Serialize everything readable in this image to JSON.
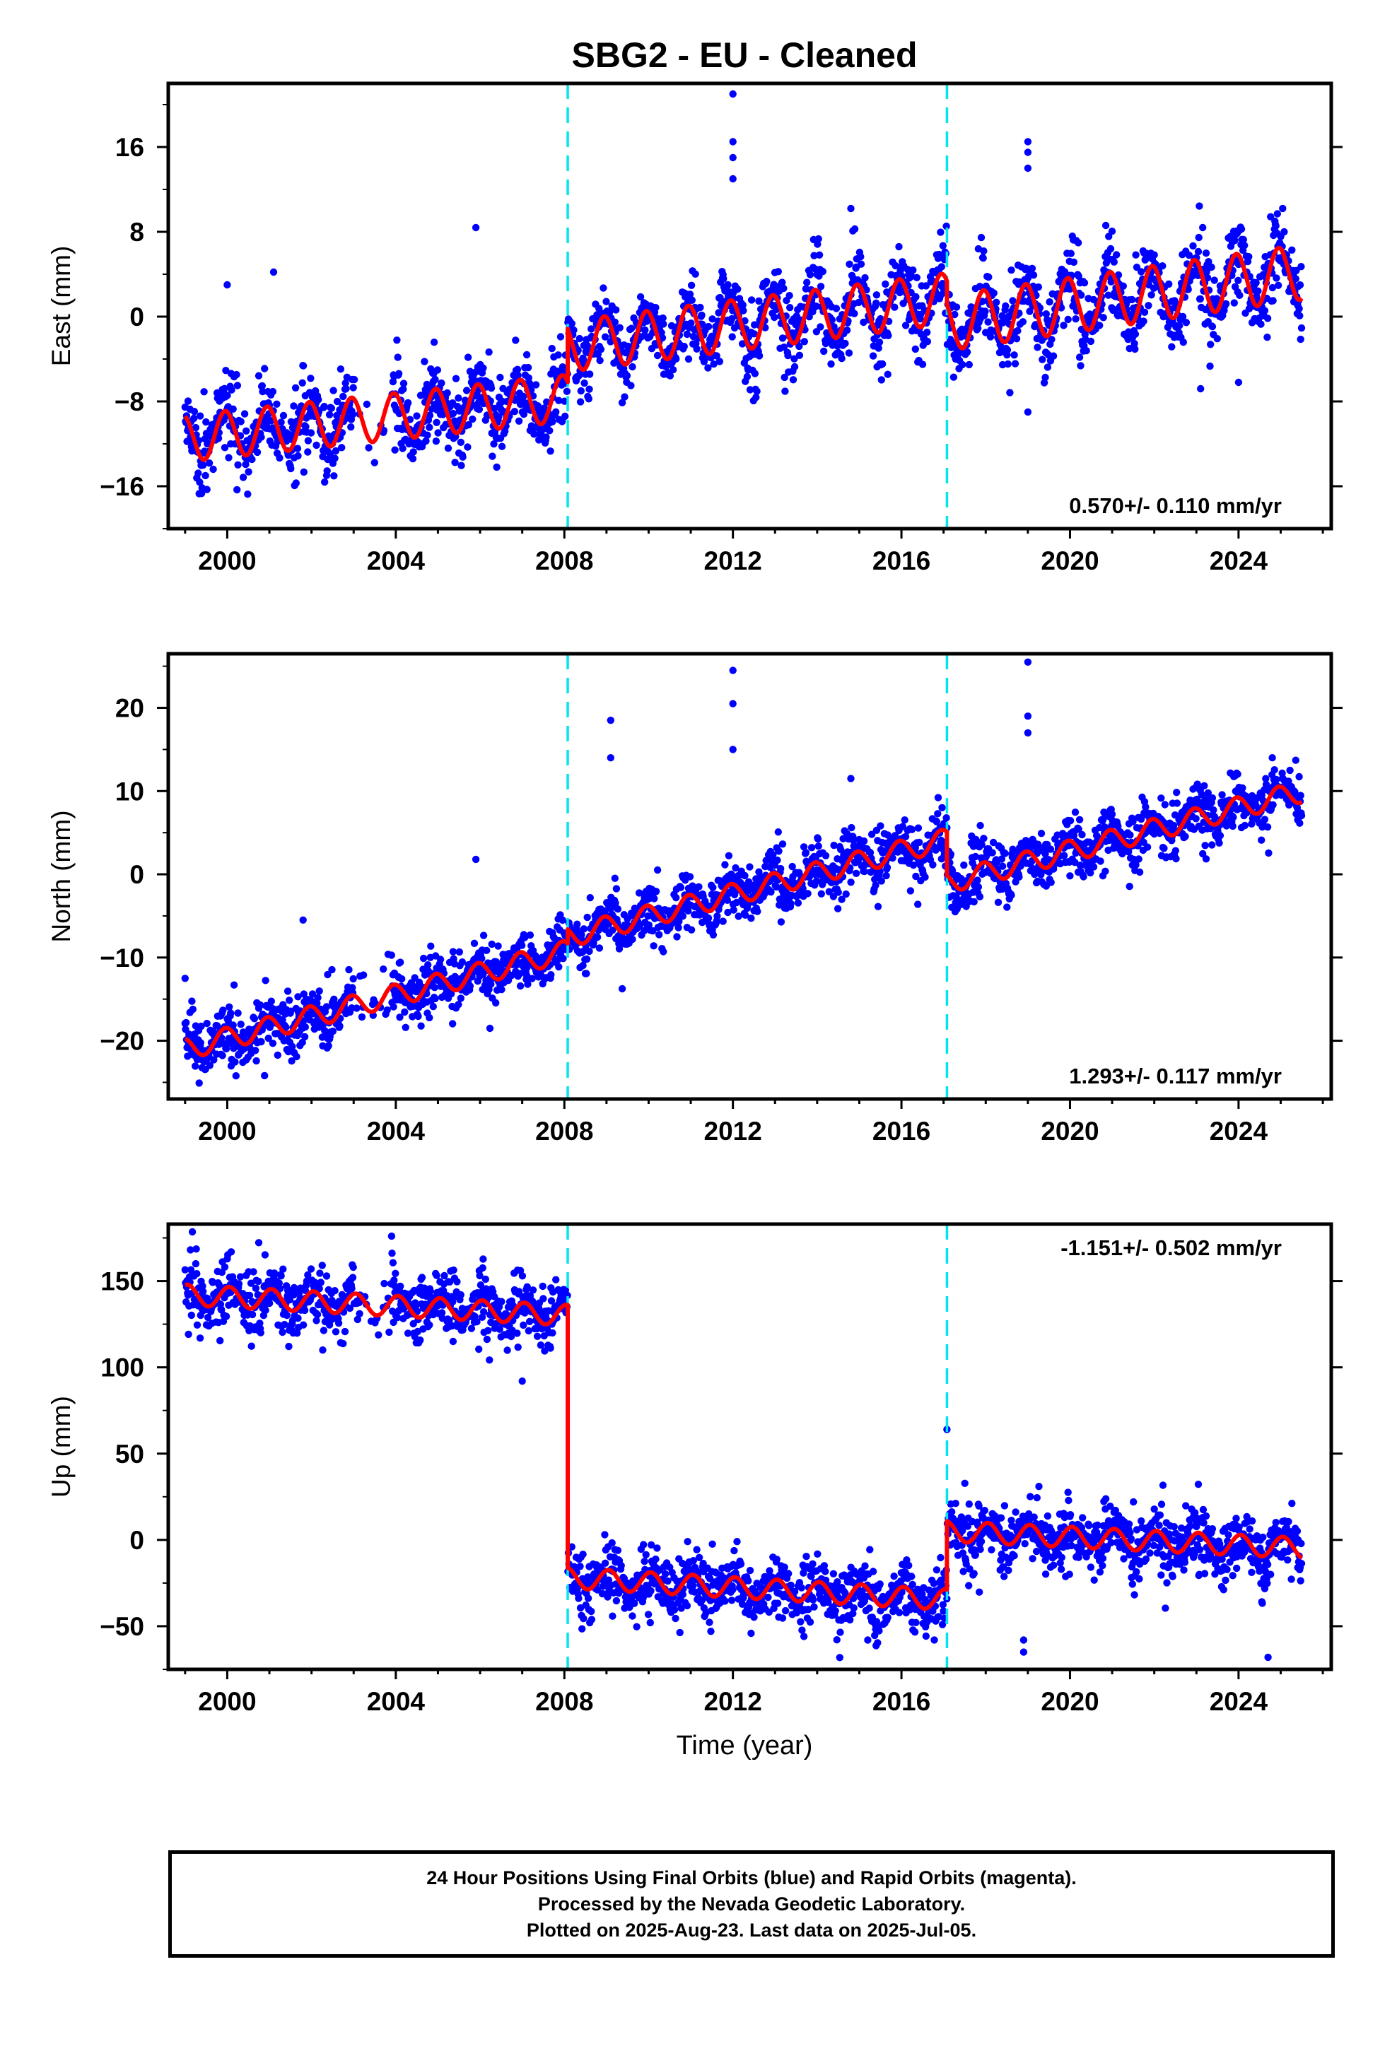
{
  "title": "SBG2  - EU - Cleaned",
  "x_axis_label": "Time (year)",
  "footer": {
    "line1": "24 Hour Positions Using Final Orbits (blue) and Rapid Orbits (magenta).",
    "line2": "Processed by the Nevada Geodetic Laboratory.",
    "line3": "Plotted on 2025-Aug-23. Last data on 2025-Jul-05."
  },
  "colors": {
    "data_points": "#0000ff",
    "model_fit": "#ff0000",
    "steps": "#00e5ee"
  },
  "chart_data": [
    {
      "type": "scatter",
      "name_key": "east",
      "ylabel": "East (mm)",
      "xlim": [
        1998.6,
        2026.2
      ],
      "ylim": [
        -20,
        22
      ],
      "xticks": [
        2000,
        2004,
        2008,
        2012,
        2016,
        2020,
        2024
      ],
      "yticks": [
        -16,
        -8,
        0,
        8,
        16
      ],
      "grid": false,
      "rate_label": "0.570+/- 0.110 mm/yr",
      "rate_position": "bottom-right",
      "step_epochs": [
        2008.08,
        2017.08
      ],
      "model_segments": [
        {
          "x": [
            1999.0,
            2008.08
          ],
          "start": -11.5,
          "slope": 0.42,
          "amp": 2.2,
          "phase": 0.3
        },
        {
          "x": [
            2008.08,
            2017.08
          ],
          "start": -2.8,
          "slope": 0.5,
          "amp": 2.4,
          "phase": 0.3
        },
        {
          "x": [
            2017.08,
            2025.5
          ],
          "start": -0.6,
          "slope": 0.57,
          "amp": 2.6,
          "phase": 0.3
        }
      ],
      "scatter": 1.8,
      "outliers": [
        [
          2012.0,
          21.0
        ],
        [
          2012.0,
          16.5
        ],
        [
          2012.0,
          15.0
        ],
        [
          2012.0,
          13.0
        ],
        [
          2019.0,
          16.5
        ],
        [
          2019.0,
          15.5
        ],
        [
          2019.0,
          14.0
        ],
        [
          2001.1,
          4.2
        ],
        [
          2000.0,
          3.0
        ],
        [
          2005.9,
          8.4
        ],
        [
          2014.8,
          10.2
        ],
        [
          2019.0,
          -9.0
        ],
        [
          2023.1,
          -6.8
        ],
        [
          2024.0,
          -6.2
        ]
      ]
    },
    {
      "type": "scatter",
      "name_key": "north",
      "ylabel": "North (mm)",
      "xlim": [
        1998.6,
        2026.2
      ],
      "ylim": [
        -27,
        26.5
      ],
      "xticks": [
        2000,
        2004,
        2008,
        2012,
        2016,
        2020,
        2024
      ],
      "yticks": [
        -20,
        -10,
        0,
        10,
        20
      ],
      "grid": false,
      "rate_label": "1.293+/- 0.117 mm/yr",
      "rate_position": "bottom-right",
      "step_epochs": [
        2008.08,
        2017.08
      ],
      "model_segments": [
        {
          "x": [
            1999.0,
            2008.08
          ],
          "start": -21.0,
          "slope": 1.3,
          "amp": 1.3,
          "phase": 0.3
        },
        {
          "x": [
            2008.08,
            2017.08
          ],
          "start": -7.5,
          "slope": 1.3,
          "amp": 1.3,
          "phase": 0.3
        },
        {
          "x": [
            2017.08,
            2025.5
          ],
          "start": -1.0,
          "slope": 1.3,
          "amp": 1.3,
          "phase": 0.3
        }
      ],
      "scatter": 1.6,
      "outliers": [
        [
          2012.0,
          24.5
        ],
        [
          2012.0,
          20.5
        ],
        [
          2012.0,
          15.0
        ],
        [
          2009.1,
          18.5
        ],
        [
          2009.1,
          14.0
        ],
        [
          2019.0,
          25.5
        ],
        [
          2019.0,
          19.0
        ],
        [
          2019.0,
          17.0
        ],
        [
          2014.8,
          11.5
        ],
        [
          2005.9,
          1.8
        ],
        [
          2001.8,
          -5.5
        ],
        [
          1999.0,
          -12.5
        ],
        [
          2024.8,
          14.0
        ]
      ]
    },
    {
      "type": "scatter",
      "name_key": "up",
      "ylabel": "Up (mm)",
      "xlim": [
        1998.6,
        2026.2
      ],
      "ylim": [
        -75,
        183
      ],
      "xticks": [
        2000,
        2004,
        2008,
        2012,
        2016,
        2020,
        2024
      ],
      "yticks": [
        -50,
        0,
        50,
        100,
        150
      ],
      "grid": false,
      "rate_label": "-1.151+/- 0.502 mm/yr",
      "rate_position": "top-right",
      "step_epochs": [
        2008.08,
        2017.08
      ],
      "model_segments": [
        {
          "x": [
            1999.0,
            2008.08
          ],
          "start": 142,
          "slope": -1.3,
          "amp": 6,
          "phase": 0.2
        },
        {
          "x": [
            2008.08,
            2017.08
          ],
          "start": -22,
          "slope": -1.4,
          "amp": 6,
          "phase": 0.2
        },
        {
          "x": [
            2017.08,
            2025.5
          ],
          "start": 5,
          "slope": -1.15,
          "amp": 6,
          "phase": 0.2
        }
      ],
      "scatter": 9,
      "outliers": [
        [
          2017.08,
          64
        ],
        [
          2018.9,
          -65
        ],
        [
          2018.9,
          -58
        ],
        [
          2024.7,
          -68
        ],
        [
          2003.9,
          176
        ],
        [
          2007.0,
          92
        ],
        [
          2015.2,
          -58
        ]
      ]
    }
  ]
}
